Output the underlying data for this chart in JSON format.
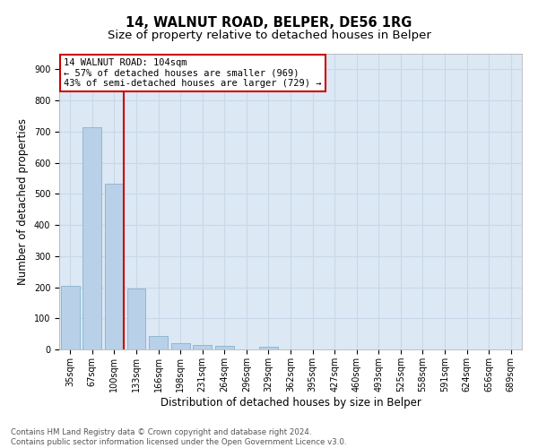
{
  "title": "14, WALNUT ROAD, BELPER, DE56 1RG",
  "subtitle": "Size of property relative to detached houses in Belper",
  "xlabel": "Distribution of detached houses by size in Belper",
  "ylabel": "Number of detached properties",
  "categories": [
    "35sqm",
    "67sqm",
    "100sqm",
    "133sqm",
    "166sqm",
    "198sqm",
    "231sqm",
    "264sqm",
    "296sqm",
    "329sqm",
    "362sqm",
    "395sqm",
    "427sqm",
    "460sqm",
    "493sqm",
    "525sqm",
    "558sqm",
    "591sqm",
    "624sqm",
    "656sqm",
    "689sqm"
  ],
  "values": [
    203,
    714,
    534,
    196,
    44,
    20,
    15,
    12,
    0,
    10,
    0,
    0,
    0,
    0,
    0,
    0,
    0,
    0,
    0,
    0,
    0
  ],
  "bar_color": "#b8d0e8",
  "bar_edge_color": "#7aaac8",
  "highlight_color": "#cc0000",
  "annotation_lines": [
    "14 WALNUT ROAD: 104sqm",
    "← 57% of detached houses are smaller (969)",
    "43% of semi-detached houses are larger (729) →"
  ],
  "annotation_box_color": "#cc0000",
  "grid_color": "#c8d8e8",
  "background_color": "#dce8f4",
  "ylim": [
    0,
    950
  ],
  "yticks": [
    0,
    100,
    200,
    300,
    400,
    500,
    600,
    700,
    800,
    900
  ],
  "footer_text": "Contains HM Land Registry data © Crown copyright and database right 2024.\nContains public sector information licensed under the Open Government Licence v3.0.",
  "title_fontsize": 10.5,
  "subtitle_fontsize": 9.5,
  "tick_fontsize": 7,
  "label_fontsize": 8.5,
  "annotation_fontsize": 7.5
}
